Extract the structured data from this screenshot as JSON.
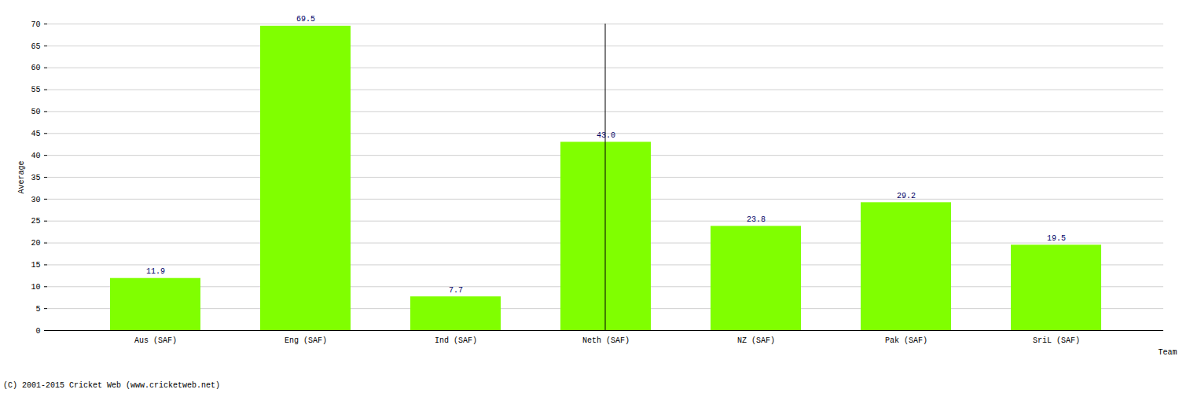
{
  "chart_data": {
    "type": "bar",
    "x_label": "Team",
    "y_label": "Average",
    "caption": "(C) 2001-2015 Cricket Web (www.cricketweb.net)",
    "categories": [
      "Aus (SAF)",
      "Eng (SAF)",
      "Ind (SAF)",
      "Neth (SAF)",
      "NZ (SAF)",
      "Pak (SAF)",
      "SriL (SAF)"
    ],
    "values": [
      11.9,
      69.5,
      7.7,
      43.0,
      23.8,
      29.2,
      19.5
    ],
    "value_labels": [
      "11.9",
      "69.5",
      "7.7",
      "43.0",
      "23.8",
      "29.2",
      "19.5"
    ],
    "color": "#80ff00",
    "ylim": [
      0,
      70
    ],
    "yticks": [
      0,
      5,
      10,
      15,
      20,
      25,
      30,
      35,
      40,
      45,
      50,
      55,
      60,
      65,
      70
    ],
    "grid": true,
    "data_labels": true
  }
}
